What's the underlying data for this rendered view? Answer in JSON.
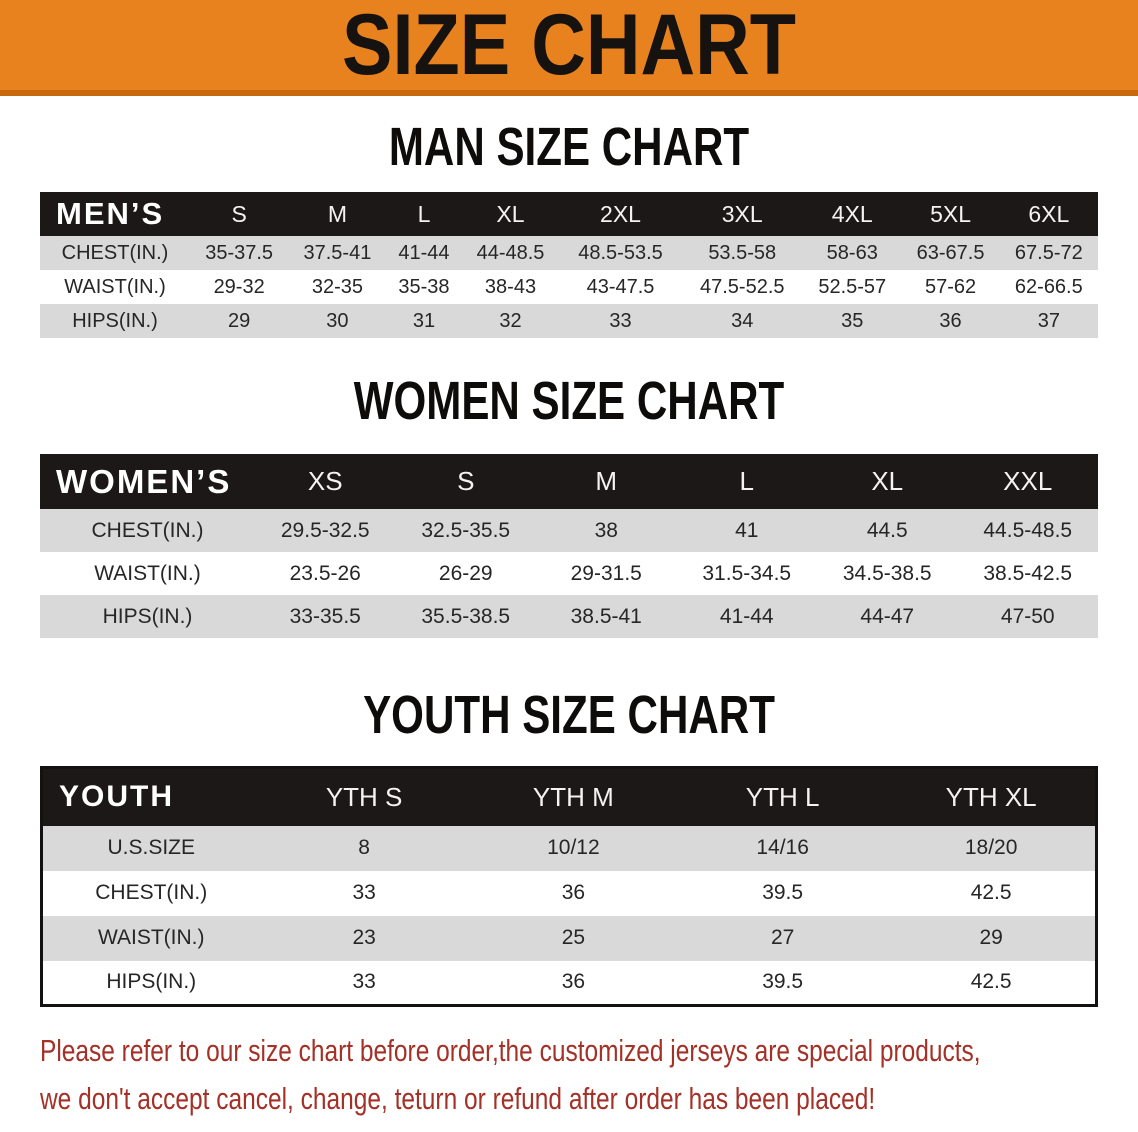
{
  "banner": {
    "title": "SIZE CHART"
  },
  "colors": {
    "banner_orange": "#E8821E",
    "banner_shadow": "#C9690D",
    "header_black": "#1B1817",
    "row_gray": "#D9D9D9",
    "notice_red": "#A43127",
    "text_dark": "#262626"
  },
  "sections": [
    {
      "name": "men",
      "title": "MAN SIZE CHART",
      "header_label": "MEN’S",
      "columns": [
        "S",
        "M",
        "L",
        "XL",
        "2XL",
        "3XL",
        "4XL",
        "5XL",
        "6XL"
      ],
      "rows": [
        {
          "label": "CHEST(IN.)",
          "values": [
            "35-37.5",
            "37.5-41",
            "41-44",
            "44-48.5",
            "48.5-53.5",
            "53.5-58",
            "58-63",
            "63-67.5",
            "67.5-72"
          ]
        },
        {
          "label": "WAIST(IN.)",
          "values": [
            "29-32",
            "32-35",
            "35-38",
            "38-43",
            "43-47.5",
            "47.5-52.5",
            "52.5-57",
            "57-62",
            "62-66.5"
          ]
        },
        {
          "label": "HIPS(IN.)",
          "values": [
            "29",
            "30",
            "31",
            "32",
            "33",
            "34",
            "35",
            "36",
            "37"
          ]
        }
      ]
    },
    {
      "name": "women",
      "title": "WOMEN SIZE CHART",
      "header_label": "WOMEN’S",
      "columns": [
        "XS",
        "S",
        "M",
        "L",
        "XL",
        "XXL"
      ],
      "rows": [
        {
          "label": "CHEST(IN.)",
          "values": [
            "29.5-32.5",
            "32.5-35.5",
            "38",
            "41",
            "44.5",
            "44.5-48.5"
          ]
        },
        {
          "label": "WAIST(IN.)",
          "values": [
            "23.5-26",
            "26-29",
            "29-31.5",
            "31.5-34.5",
            "34.5-38.5",
            "38.5-42.5"
          ]
        },
        {
          "label": "HIPS(IN.)",
          "values": [
            "33-35.5",
            "35.5-38.5",
            "38.5-41",
            "41-44",
            "44-47",
            "47-50"
          ]
        }
      ]
    },
    {
      "name": "youth",
      "title": "YOUTH SIZE CHART",
      "header_label": "YOUTH",
      "columns": [
        "YTH S",
        "YTH M",
        "YTH L",
        "YTH XL"
      ],
      "rows": [
        {
          "label": "U.S.SIZE",
          "values": [
            "8",
            "10/12",
            "14/16",
            "18/20"
          ]
        },
        {
          "label": "CHEST(IN.)",
          "values": [
            "33",
            "36",
            "39.5",
            "42.5"
          ]
        },
        {
          "label": "WAIST(IN.)",
          "values": [
            "23",
            "25",
            "27",
            "29"
          ]
        },
        {
          "label": "HIPS(IN.)",
          "values": [
            "33",
            "36",
            "39.5",
            "42.5"
          ]
        }
      ]
    }
  ],
  "footer": {
    "line1": "Please refer to our size chart before order,the customized jerseys are special products,",
    "line2": "we don't accept cancel, change, teturn or refund after order has been placed!"
  }
}
